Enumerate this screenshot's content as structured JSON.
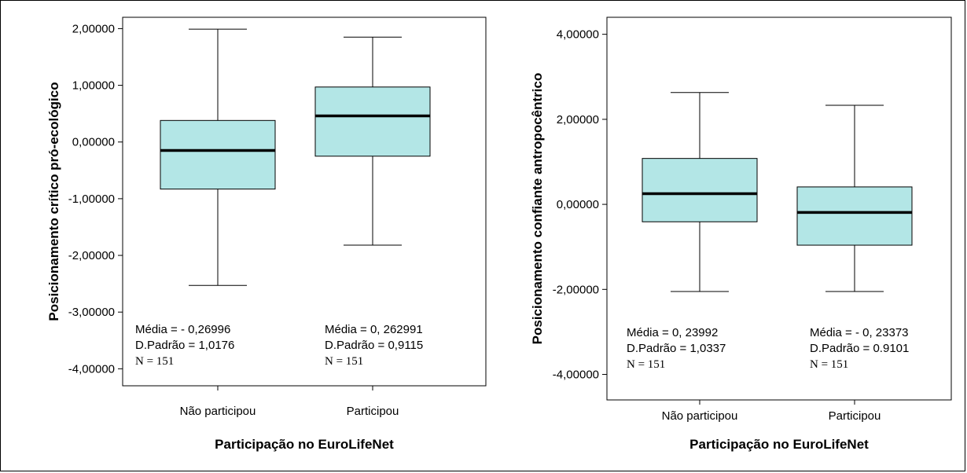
{
  "chart_data": [
    {
      "type": "box",
      "xlabel": "Participação no EuroLifeNet",
      "ylabel": "Posicionamento crítico pró-ecológico",
      "ylim": [
        -4.3,
        2.2
      ],
      "yticks": [
        2,
        1,
        0,
        -1,
        -2,
        -3,
        -4
      ],
      "ytick_labels": [
        "2,00000",
        "1,00000",
        "0,00000",
        "-1,00000",
        "-2,00000",
        "-3,00000",
        "-4,00000"
      ],
      "box_color": "#b3e6e6",
      "groups": [
        {
          "category": "Não participou",
          "whisker_low": -2.53,
          "q1": -0.83,
          "median": -0.15,
          "q3": 0.38,
          "whisker_high": 1.99,
          "stats": [
            "Média = - 0,26996",
            "D.Padrão = 1,0176",
            "N = 151"
          ]
        },
        {
          "category": "Participou",
          "whisker_low": -1.82,
          "q1": -0.25,
          "median": 0.46,
          "q3": 0.97,
          "whisker_high": 1.85,
          "stats": [
            "Média = 0, 262991",
            "D.Padrão = 0,9115",
            "N = 151"
          ]
        }
      ]
    },
    {
      "type": "box",
      "xlabel": "Participação no EuroLifeNet",
      "ylabel": "Posicionamento confiante antropocêntrico",
      "ylim": [
        -4.6,
        4.4
      ],
      "yticks": [
        4,
        2,
        0,
        -2,
        -4
      ],
      "ytick_labels": [
        "4,00000",
        "2,00000",
        "0,00000",
        "-2,00000",
        "-4,00000"
      ],
      "box_color": "#b3e6e6",
      "groups": [
        {
          "category": "Não participou",
          "whisker_low": -2.05,
          "q1": -0.41,
          "median": 0.25,
          "q3": 1.08,
          "whisker_high": 2.63,
          "stats": [
            "Média = 0, 23992",
            "D.Padrão = 1,0337",
            "N = 151"
          ]
        },
        {
          "category": "Participou",
          "whisker_low": -2.05,
          "q1": -0.96,
          "median": -0.19,
          "q3": 0.41,
          "whisker_high": 2.33,
          "stats": [
            "Média = - 0, 23373",
            "D.Padrão = 0.9101",
            "N = 151"
          ]
        }
      ]
    }
  ]
}
